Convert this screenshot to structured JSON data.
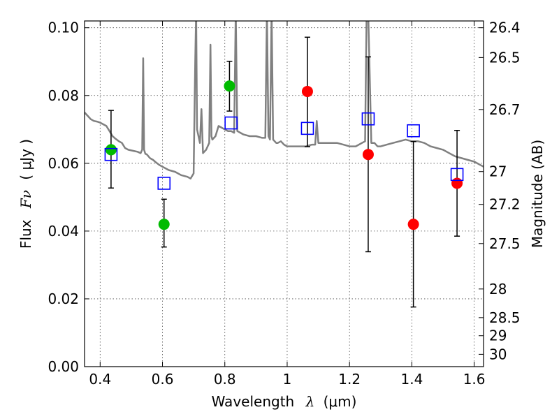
{
  "chart_data": {
    "type": "scatter",
    "xlabel": "Wavelength",
    "xlabel_symbol": "λ",
    "xlabel_unit": "(μm)",
    "ylabel": "Flux",
    "ylabel_symbol": "Fν",
    "ylabel_unit": "( μJy )",
    "y2label": "Magnitude (AB)",
    "xlim": [
      0.35,
      1.63
    ],
    "ylim": [
      0.0,
      0.102
    ],
    "grid": true,
    "x_ticks": [
      0.4,
      0.6,
      0.8,
      1.0,
      1.2,
      1.4,
      1.6
    ],
    "x_tick_labels": [
      "0.4",
      "0.6",
      "0.8",
      "1",
      "1.2",
      "1.4",
      "1.6"
    ],
    "y_ticks": [
      0.0,
      0.02,
      0.04,
      0.06,
      0.08,
      0.1
    ],
    "y_tick_labels": [
      "0.00",
      "0.02",
      "0.04",
      "0.06",
      "0.08",
      "0.10"
    ],
    "y2_ticks": [
      26.4,
      26.5,
      26.7,
      27.0,
      27.2,
      27.5,
      28.0,
      28.5,
      29.0,
      30.0
    ],
    "y2_tick_labels": [
      "26.4",
      "26.5",
      "26.7",
      "27",
      "27.2",
      "27.5",
      "28",
      "28.5",
      "29",
      "30"
    ],
    "series": [
      {
        "kind": "errorbar",
        "color": "#000000",
        "points": [
          {
            "x": 0.435,
            "y": 0.064,
            "ylow": 0.0527,
            "yhigh": 0.0756
          },
          {
            "x": 0.605,
            "y": 0.042,
            "ylow": 0.0353,
            "yhigh": 0.0494
          },
          {
            "x": 0.815,
            "y": 0.0828,
            "ylow": 0.0754,
            "yhigh": 0.0901
          },
          {
            "x": 1.065,
            "y": 0.0812,
            "ylow": 0.0649,
            "yhigh": 0.0972
          },
          {
            "x": 1.26,
            "y": 0.0626,
            "ylow": 0.0339,
            "yhigh": 0.0914
          },
          {
            "x": 1.405,
            "y": 0.042,
            "ylow": 0.0176,
            "yhigh": 0.0664
          },
          {
            "x": 1.545,
            "y": 0.0541,
            "ylow": 0.0385,
            "yhigh": 0.0697
          }
        ]
      },
      {
        "kind": "points",
        "marker": "circle",
        "color": "#00bb00",
        "x": [
          0.435,
          0.605,
          0.815
        ],
        "y": [
          0.064,
          0.042,
          0.0828
        ]
      },
      {
        "kind": "points",
        "marker": "circle",
        "color": "#ff0000",
        "x": [
          1.065,
          1.26,
          1.405,
          1.545
        ],
        "y": [
          0.0812,
          0.0626,
          0.042,
          0.0541
        ]
      },
      {
        "kind": "points",
        "marker": "square-open",
        "color": "#0000ff",
        "x": [
          0.435,
          0.605,
          0.82,
          1.065,
          1.26,
          1.405,
          1.545
        ],
        "y": [
          0.0626,
          0.0541,
          0.0719,
          0.0703,
          0.0731,
          0.0696,
          0.0567
        ]
      },
      {
        "kind": "line",
        "color": "#808080",
        "x": [
          0.35,
          0.36,
          0.37,
          0.38,
          0.39,
          0.4,
          0.41,
          0.42,
          0.43,
          0.44,
          0.45,
          0.46,
          0.47,
          0.48,
          0.49,
          0.5,
          0.51,
          0.52,
          0.53,
          0.535,
          0.538,
          0.541,
          0.545,
          0.55,
          0.56,
          0.57,
          0.58,
          0.59,
          0.6,
          0.62,
          0.64,
          0.66,
          0.68,
          0.69,
          0.7,
          0.705,
          0.708,
          0.711,
          0.72,
          0.725,
          0.73,
          0.74,
          0.75,
          0.754,
          0.757,
          0.76,
          0.77,
          0.78,
          0.79,
          0.8,
          0.81,
          0.82,
          0.83,
          0.835,
          0.84,
          0.85,
          0.86,
          0.88,
          0.9,
          0.92,
          0.93,
          0.935,
          0.94,
          0.945,
          0.95,
          0.955,
          0.96,
          0.965,
          0.97,
          0.98,
          0.99,
          1.0,
          1.01,
          1.02,
          1.04,
          1.06,
          1.08,
          1.09,
          1.095,
          1.1,
          1.12,
          1.14,
          1.16,
          1.18,
          1.2,
          1.22,
          1.24,
          1.25,
          1.255,
          1.26,
          1.27,
          1.28,
          1.29,
          1.3,
          1.32,
          1.34,
          1.36,
          1.38,
          1.4,
          1.42,
          1.44,
          1.46,
          1.48,
          1.5,
          1.52,
          1.54,
          1.56,
          1.58,
          1.6,
          1.62,
          1.63
        ],
        "y": [
          0.075,
          0.074,
          0.073,
          0.0725,
          0.0723,
          0.072,
          0.0715,
          0.071,
          0.0695,
          0.068,
          0.0672,
          0.0665,
          0.066,
          0.0645,
          0.064,
          0.0638,
          0.0636,
          0.0634,
          0.063,
          0.064,
          0.091,
          0.064,
          0.0628,
          0.0626,
          0.0615,
          0.061,
          0.0602,
          0.0595,
          0.059,
          0.058,
          0.0575,
          0.0565,
          0.056,
          0.0555,
          0.057,
          0.09,
          0.105,
          0.07,
          0.066,
          0.076,
          0.063,
          0.064,
          0.066,
          0.095,
          0.068,
          0.067,
          0.068,
          0.071,
          0.0705,
          0.07,
          0.0695,
          0.0695,
          0.069,
          0.105,
          0.0695,
          0.069,
          0.0685,
          0.068,
          0.068,
          0.0675,
          0.0675,
          0.105,
          0.068,
          0.067,
          0.105,
          0.067,
          0.0665,
          0.066,
          0.066,
          0.0665,
          0.0655,
          0.065,
          0.065,
          0.065,
          0.065,
          0.065,
          0.0655,
          0.0655,
          0.0725,
          0.066,
          0.066,
          0.066,
          0.066,
          0.0655,
          0.065,
          0.065,
          0.066,
          0.0665,
          0.105,
          0.105,
          0.066,
          0.066,
          0.065,
          0.065,
          0.0655,
          0.066,
          0.0665,
          0.067,
          0.0665,
          0.0665,
          0.066,
          0.065,
          0.0645,
          0.064,
          0.063,
          0.062,
          0.0615,
          0.061,
          0.0605,
          0.0595,
          0.059
        ]
      }
    ]
  }
}
